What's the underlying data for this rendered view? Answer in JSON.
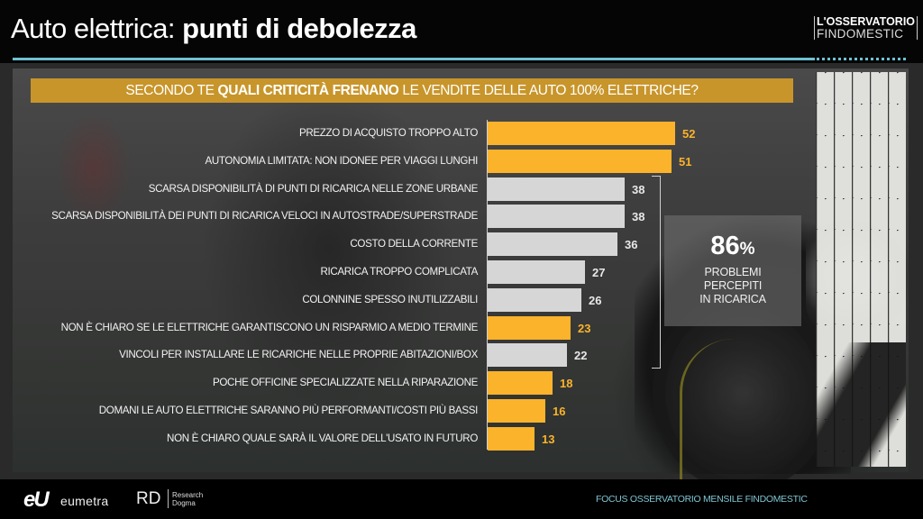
{
  "header": {
    "title_light": "Auto elettrica:",
    "title_bold": "punti di debolezza",
    "brand_line1": "L'OSSERVATORIO",
    "brand_line2": "FINDOMESTIC"
  },
  "banner": {
    "prefix": "SECONDO TE ",
    "bold": "QUALI CRITICITÀ FRENANO",
    "suffix": " LE VENDITE DELLE AUTO 100% ELETTRICHE?"
  },
  "chart_data": {
    "type": "bar",
    "orientation": "horizontal",
    "title": "SECONDO TE QUALI CRITICITÀ FRENANO LE VENDITE DELLE AUTO 100% ELETTRICHE?",
    "xlabel": "",
    "ylabel": "",
    "xlim": [
      0,
      52
    ],
    "grid": false,
    "colors": {
      "highlight": "#fbb32b",
      "normal": "#d6d6d6"
    },
    "categories": [
      "PREZZO DI ACQUISTO TROPPO ALTO",
      "AUTONOMIA LIMITATA: NON IDONEE PER VIAGGI LUNGHI",
      "SCARSA DISPONIBILITÀ DI PUNTI DI RICARICA NELLE ZONE URBANE",
      "SCARSA DISPONIBILITÀ DEI PUNTI DI RICARICA VELOCI IN AUTOSTRADE/SUPERSTRADE",
      "COSTO DELLA CORRENTE",
      "RICARICA TROPPO COMPLICATA",
      "COLONNINE SPESSO INUTILIZZABILI",
      "NON È CHIARO SE LE ELETTRICHE GARANTISCONO UN RISPARMIO A MEDIO TERMINE",
      "VINCOLI PER INSTALLARE LE RICARICHE NELLE PROPRIE ABITAZIONI/BOX",
      "POCHE OFFICINE SPECIALIZZATE NELLA RIPARAZIONE",
      "DOMANI LE AUTO ELETTRICHE SARANNO PIÙ PERFORMANTI/COSTI PIÙ BASSI",
      "NON È CHIARO QUALE SARÀ IL VALORE DELL'USATO IN FUTURO"
    ],
    "values": [
      52,
      51,
      38,
      38,
      36,
      27,
      26,
      23,
      22,
      18,
      16,
      13
    ],
    "group": [
      "highlight",
      "highlight",
      "normal",
      "normal",
      "normal",
      "normal",
      "normal",
      "highlight",
      "normal",
      "highlight",
      "highlight",
      "highlight"
    ],
    "annotation": {
      "value": "86",
      "unit": "%",
      "text_lines": [
        "PROBLEMI",
        "PERCEPITI",
        "IN RICARICA"
      ],
      "spans_categories": [
        2,
        8
      ]
    }
  },
  "footer": {
    "logo1_mark": "eU",
    "logo1_name": "eumetra",
    "logo2_mark": "RD",
    "logo2_line1": "Research",
    "logo2_line2": "Dogma",
    "caption": "FOCUS OSSERVATORIO MENSILE FINDOMESTIC"
  }
}
